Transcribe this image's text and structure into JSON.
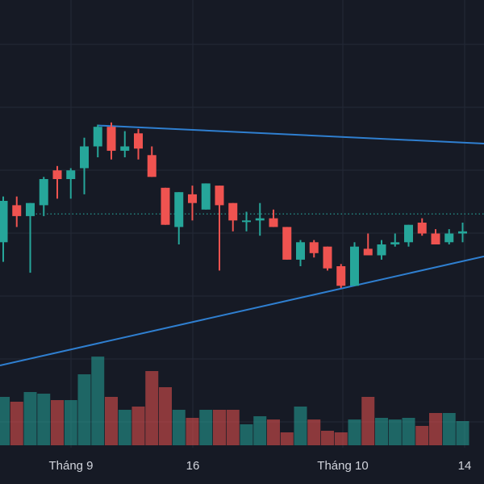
{
  "chart_data": {
    "type": "candlestick",
    "x_tick_labels": [
      "Tháng 9",
      "16",
      "Tháng 10",
      "14"
    ],
    "grid": true,
    "colors": {
      "background": "#161a25",
      "grid": "#242937",
      "up": "#26a69a",
      "down": "#ef5350",
      "trendline": "#2f7fd0",
      "reference_line": "#26a69a"
    },
    "reference_line_value": 124,
    "candles": [
      {
        "o": 111,
        "h": 132,
        "l": 102,
        "c": 130
      },
      {
        "o": 128,
        "h": 132,
        "l": 118,
        "c": 123
      },
      {
        "o": 123,
        "h": 129,
        "l": 97,
        "c": 129
      },
      {
        "o": 128,
        "h": 141,
        "l": 123,
        "c": 140
      },
      {
        "o": 144,
        "h": 146,
        "l": 131,
        "c": 140
      },
      {
        "o": 140,
        "h": 145,
        "l": 131,
        "c": 144
      },
      {
        "o": 145,
        "h": 159,
        "l": 133,
        "c": 155
      },
      {
        "o": 155,
        "h": 165,
        "l": 150,
        "c": 164
      },
      {
        "o": 164,
        "h": 166,
        "l": 149,
        "c": 153
      },
      {
        "o": 153,
        "h": 162,
        "l": 150,
        "c": 155
      },
      {
        "o": 161,
        "h": 163,
        "l": 149,
        "c": 154
      },
      {
        "o": 151,
        "h": 155,
        "l": 141,
        "c": 141
      },
      {
        "o": 136,
        "h": 136,
        "l": 119,
        "c": 119
      },
      {
        "o": 118,
        "h": 134,
        "l": 110,
        "c": 134
      },
      {
        "o": 133,
        "h": 137,
        "l": 121,
        "c": 129
      },
      {
        "o": 126,
        "h": 138,
        "l": 126,
        "c": 138
      },
      {
        "o": 137,
        "h": 137,
        "l": 98,
        "c": 128
      },
      {
        "o": 129,
        "h": 129,
        "l": 116,
        "c": 121
      },
      {
        "o": 121,
        "h": 125,
        "l": 116,
        "c": 121
      },
      {
        "o": 121,
        "h": 129,
        "l": 114,
        "c": 122
      },
      {
        "o": 122,
        "h": 126,
        "l": 118,
        "c": 118
      },
      {
        "o": 118,
        "h": 118,
        "l": 103,
        "c": 103
      },
      {
        "o": 103,
        "h": 112,
        "l": 100,
        "c": 111
      },
      {
        "o": 111,
        "h": 112,
        "l": 104,
        "c": 106
      },
      {
        "o": 109,
        "h": 109,
        "l": 98,
        "c": 99
      },
      {
        "o": 100,
        "h": 101,
        "l": 90,
        "c": 91
      },
      {
        "o": 91,
        "h": 111,
        "l": 91,
        "c": 109
      },
      {
        "o": 108,
        "h": 115,
        "l": 105,
        "c": 105
      },
      {
        "o": 105,
        "h": 112,
        "l": 103,
        "c": 110
      },
      {
        "o": 110,
        "h": 115,
        "l": 109,
        "c": 111
      },
      {
        "o": 111,
        "h": 119,
        "l": 109,
        "c": 119
      },
      {
        "o": 120,
        "h": 122,
        "l": 114,
        "c": 115
      },
      {
        "o": 115,
        "h": 117,
        "l": 110,
        "c": 110
      },
      {
        "o": 111,
        "h": 117,
        "l": 110,
        "c": 115
      },
      {
        "o": 115,
        "h": 120,
        "l": 111,
        "c": 116
      }
    ],
    "volume": [
      30,
      27,
      33,
      32,
      28,
      28,
      44,
      55,
      30,
      22,
      24,
      46,
      36,
      22,
      17,
      22,
      22,
      22,
      13,
      18,
      16,
      8,
      24,
      16,
      9,
      8,
      16,
      30,
      17,
      16,
      17,
      12,
      20,
      20,
      15
    ]
  }
}
